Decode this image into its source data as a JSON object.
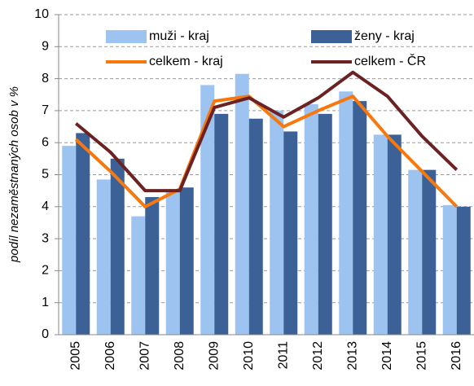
{
  "chart_data": {
    "type": "bar_line",
    "y_label": "podíl nezaměstnaných osob v %",
    "categories": [
      "2005",
      "2006",
      "2007",
      "2008",
      "2009",
      "2010",
      "2011",
      "2012",
      "2013",
      "2014",
      "2015",
      "2016"
    ],
    "series": [
      {
        "name": "muži - kraj",
        "type": "bar",
        "color": "#9dc3f0",
        "values": [
          5.9,
          4.85,
          3.7,
          4.5,
          7.8,
          8.15,
          7.0,
          7.2,
          7.6,
          6.25,
          5.15,
          4.05
        ]
      },
      {
        "name": "ženy - kraj",
        "type": "bar",
        "color": "#3b6196",
        "values": [
          6.3,
          5.5,
          4.3,
          4.6,
          6.9,
          6.75,
          6.35,
          6.9,
          7.3,
          6.25,
          5.15,
          4.0
        ]
      },
      {
        "name": "celkem - kraj",
        "type": "line",
        "color": "#f7780f",
        "values": [
          6.1,
          5.1,
          4.0,
          4.55,
          7.3,
          7.45,
          6.5,
          7.0,
          7.45,
          6.2,
          5.1,
          4.0
        ]
      },
      {
        "name": "celkem - ČR",
        "type": "line",
        "color": "#6b2222",
        "values": [
          6.6,
          5.7,
          4.5,
          4.5,
          7.1,
          7.4,
          6.8,
          7.4,
          8.2,
          7.45,
          6.2,
          5.15
        ]
      }
    ],
    "ylim": [
      0,
      10
    ],
    "yticks": [
      0,
      1,
      2,
      3,
      4,
      5,
      6,
      7,
      8,
      9,
      10
    ],
    "grid": true
  }
}
